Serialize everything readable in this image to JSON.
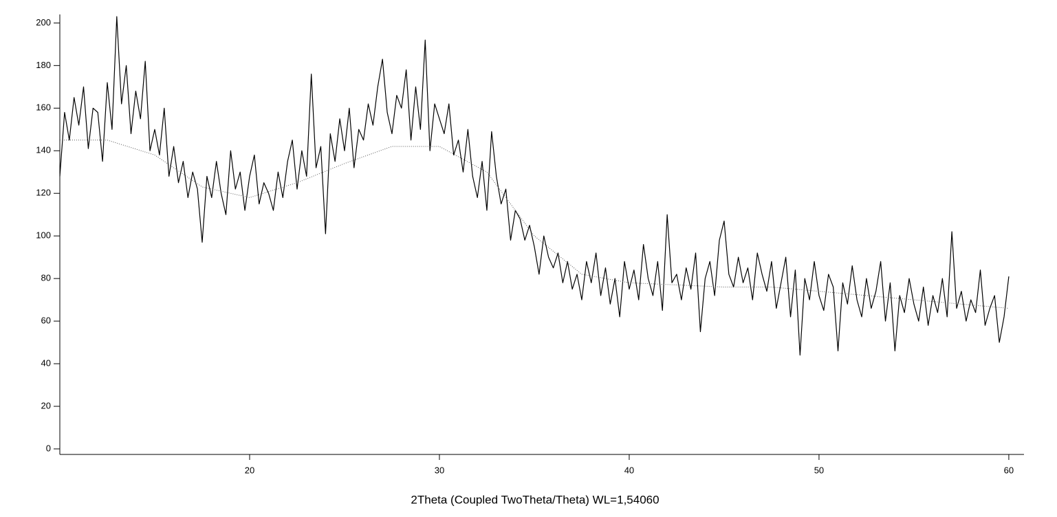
{
  "chart_data": {
    "type": "line",
    "xlabel": "2Theta (Coupled TwoTheta/Theta) WL=1,54060",
    "xlim": [
      10,
      60.8
    ],
    "ylim": [
      -2.6,
      204
    ],
    "xticks": [
      20,
      30,
      40,
      50,
      60
    ],
    "yticks": [
      0,
      20,
      40,
      60,
      80,
      100,
      120,
      140,
      160,
      180,
      200
    ],
    "series": [
      {
        "color": "#000000",
        "style": "solid",
        "x": [
          10,
          10.25,
          10.5,
          10.75,
          11,
          11.25,
          11.5,
          11.75,
          12,
          12.25,
          12.5,
          12.75,
          13,
          13.25,
          13.5,
          13.75,
          14,
          14.25,
          14.5,
          14.75,
          15,
          15.25,
          15.5,
          15.75,
          16,
          16.25,
          16.5,
          16.75,
          17,
          17.25,
          17.5,
          17.75,
          18,
          18.25,
          18.5,
          18.75,
          19,
          19.25,
          19.5,
          19.75,
          20,
          20.25,
          20.5,
          20.75,
          21,
          21.25,
          21.5,
          21.75,
          22,
          22.25,
          22.5,
          22.75,
          23,
          23.25,
          23.5,
          23.75,
          24,
          24.25,
          24.5,
          24.75,
          25,
          25.25,
          25.5,
          25.75,
          26,
          26.25,
          26.5,
          26.75,
          27,
          27.25,
          27.5,
          27.75,
          28,
          28.25,
          28.5,
          28.75,
          29,
          29.25,
          29.5,
          29.75,
          30,
          30.25,
          30.5,
          30.75,
          31,
          31.25,
          31.5,
          31.75,
          32,
          32.25,
          32.5,
          32.75,
          33,
          33.25,
          33.5,
          33.75,
          34,
          34.25,
          34.5,
          34.75,
          35,
          35.25,
          35.5,
          35.75,
          36,
          36.25,
          36.5,
          36.75,
          37,
          37.25,
          37.5,
          37.75,
          38,
          38.25,
          38.5,
          38.75,
          39,
          39.25,
          39.5,
          39.75,
          40,
          40.25,
          40.5,
          40.75,
          41,
          41.25,
          41.5,
          41.75,
          42,
          42.25,
          42.5,
          42.75,
          43,
          43.25,
          43.5,
          43.75,
          44,
          44.25,
          44.5,
          44.75,
          45,
          45.25,
          45.5,
          45.75,
          46,
          46.25,
          46.5,
          46.75,
          47,
          47.25,
          47.5,
          47.75,
          48,
          48.25,
          48.5,
          48.75,
          49,
          49.25,
          49.5,
          49.75,
          50,
          50.25,
          50.5,
          50.75,
          51,
          51.25,
          51.5,
          51.75,
          52,
          52.25,
          52.5,
          52.75,
          53,
          53.25,
          53.5,
          53.75,
          54,
          54.25,
          54.5,
          54.75,
          55,
          55.25,
          55.5,
          55.75,
          56,
          56.25,
          56.5,
          56.75,
          57,
          57.25,
          57.5,
          57.75,
          58,
          58.25,
          58.5,
          58.75,
          59,
          59.25,
          59.5,
          59.75,
          60
        ],
        "values": [
          128,
          158,
          145,
          165,
          152,
          170,
          141,
          160,
          158,
          135,
          172,
          150,
          203,
          162,
          180,
          148,
          168,
          155,
          182,
          140,
          150,
          138,
          160,
          128,
          142,
          125,
          135,
          118,
          130,
          122,
          97,
          128,
          118,
          135,
          120,
          110,
          140,
          122,
          130,
          112,
          128,
          138,
          115,
          125,
          120,
          112,
          130,
          118,
          135,
          145,
          122,
          140,
          128,
          176,
          132,
          142,
          101,
          148,
          135,
          155,
          140,
          160,
          132,
          150,
          145,
          162,
          152,
          170,
          183,
          158,
          148,
          166,
          160,
          178,
          145,
          170,
          150,
          192,
          140,
          162,
          155,
          148,
          162,
          138,
          145,
          130,
          150,
          128,
          118,
          135,
          112,
          149,
          128,
          115,
          122,
          98,
          112,
          108,
          98,
          105,
          95,
          82,
          100,
          90,
          85,
          92,
          78,
          88,
          75,
          82,
          70,
          88,
          78,
          92,
          72,
          85,
          68,
          80,
          62,
          88,
          75,
          84,
          70,
          96,
          80,
          72,
          88,
          65,
          110,
          78,
          82,
          70,
          85,
          75,
          92,
          55,
          80,
          88,
          72,
          98,
          107,
          82,
          76,
          90,
          78,
          85,
          70,
          92,
          82,
          74,
          88,
          66,
          78,
          90,
          62,
          84,
          44,
          80,
          70,
          88,
          72,
          65,
          82,
          76,
          46,
          78,
          68,
          86,
          70,
          62,
          80,
          66,
          74,
          88,
          60,
          78,
          46,
          72,
          64,
          80,
          68,
          60,
          76,
          58,
          72,
          64,
          80,
          62,
          102,
          66,
          74,
          60,
          70,
          64,
          84,
          58,
          66,
          72,
          50,
          62,
          81
        ]
      },
      {
        "color": "#555555",
        "style": "dotted",
        "x": [
          10,
          12.5,
          15,
          17.5,
          20,
          22.5,
          25,
          27.5,
          30,
          32.5,
          35,
          37.5,
          40,
          42.5,
          45,
          47.5,
          50,
          52.5,
          55,
          57.5,
          60
        ],
        "values": [
          145,
          145,
          138,
          123,
          118,
          125,
          134,
          142,
          142,
          130,
          100,
          82,
          78,
          77,
          76,
          76,
          74,
          72,
          70,
          68,
          66
        ]
      }
    ]
  }
}
